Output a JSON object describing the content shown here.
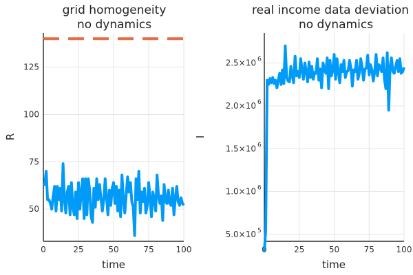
{
  "chart_data": [
    {
      "type": "line",
      "title": [
        "grid homogeneity",
        "no dynamics"
      ],
      "xlabel": "time",
      "ylabel": "R",
      "xlim": [
        0,
        100
      ],
      "ylim": [
        33,
        143
      ],
      "xticks": [
        0,
        25,
        50,
        75,
        100
      ],
      "yticks": [
        50,
        75,
        100,
        125
      ],
      "ytick_labels": [
        "50",
        "75",
        "100",
        "125"
      ],
      "grid": true,
      "legend": "none",
      "series": [
        {
          "color": "#e26f46",
          "style": "dashed",
          "width": 4,
          "x": [
            0,
            100
          ],
          "y": [
            140,
            140
          ]
        },
        {
          "color": "#009af9",
          "style": "solid",
          "width": 4,
          "x": [
            0,
            1,
            2,
            3,
            4,
            5,
            6,
            7,
            8,
            9,
            10,
            11,
            12,
            13,
            14,
            15,
            16,
            17,
            18,
            19,
            20,
            21,
            22,
            23,
            24,
            25,
            26,
            27,
            28,
            29,
            30,
            31,
            32,
            33,
            34,
            35,
            36,
            37,
            38,
            39,
            40,
            41,
            42,
            43,
            44,
            45,
            46,
            47,
            48,
            49,
            50,
            51,
            52,
            53,
            54,
            55,
            56,
            57,
            58,
            59,
            60,
            61,
            62,
            63,
            64,
            65,
            66,
            67,
            68,
            69,
            70,
            71,
            72,
            73,
            74,
            75,
            76,
            77,
            78,
            79,
            80,
            81,
            82,
            83,
            84,
            85,
            86,
            87,
            88,
            89,
            90,
            91,
            92,
            93,
            94,
            95,
            96,
            97,
            98,
            99,
            100
          ],
          "y": [
            64,
            63,
            70,
            55,
            55,
            53,
            50,
            57,
            62,
            49,
            62,
            55,
            61,
            49,
            74,
            55,
            48,
            59,
            62,
            47,
            64,
            51,
            47,
            59,
            45,
            64,
            50,
            59,
            66,
            45,
            66,
            47,
            66,
            60,
            46,
            43,
            61,
            51,
            66,
            55,
            63,
            56,
            49,
            55,
            66,
            56,
            47,
            60,
            52,
            61,
            64,
            53,
            62,
            49,
            60,
            46,
            68,
            55,
            48,
            58,
            67,
            59,
            64,
            54,
            51,
            36,
            66,
            55,
            70,
            48,
            59,
            54,
            61,
            48,
            52,
            64,
            56,
            46,
            59,
            55,
            49,
            68,
            57,
            53,
            57,
            44,
            63,
            54,
            53,
            60,
            53,
            52,
            61,
            47,
            56,
            62,
            54,
            52,
            56,
            53,
            52
          ]
        }
      ]
    },
    {
      "type": "line",
      "title": [
        "real income data deviation",
        "no dynamics"
      ],
      "xlabel": "time",
      "ylabel": "I",
      "xlim": [
        0,
        100
      ],
      "ylim": [
        420000,
        2850000
      ],
      "xticks": [
        0,
        25,
        50,
        75,
        100
      ],
      "yticks": [
        500000,
        1000000,
        1500000,
        2000000,
        2500000
      ],
      "ytick_labels": [
        {
          "mantissa": "5.0×10",
          "exp": "5"
        },
        {
          "mantissa": "1.0×10",
          "exp": "6"
        },
        {
          "mantissa": "1.5×10",
          "exp": "6"
        },
        {
          "mantissa": "2.0×10",
          "exp": "6"
        },
        {
          "mantissa": "2.5×10",
          "exp": "6"
        }
      ],
      "grid": true,
      "legend": "none",
      "series": [
        {
          "color": "#009af9",
          "style": "solid",
          "width": 4,
          "x": [
            0,
            1,
            2,
            3,
            4,
            5,
            6,
            7,
            8,
            9,
            10,
            11,
            12,
            13,
            14,
            15,
            16,
            17,
            18,
            19,
            20,
            21,
            22,
            23,
            24,
            25,
            26,
            27,
            28,
            29,
            30,
            31,
            32,
            33,
            34,
            35,
            36,
            37,
            38,
            39,
            40,
            41,
            42,
            43,
            44,
            45,
            46,
            47,
            48,
            49,
            50,
            51,
            52,
            53,
            54,
            55,
            56,
            57,
            58,
            59,
            60,
            61,
            62,
            63,
            64,
            65,
            66,
            67,
            68,
            69,
            70,
            71,
            72,
            73,
            74,
            75,
            76,
            77,
            78,
            79,
            80,
            81,
            82,
            83,
            84,
            85,
            86,
            87,
            88,
            89,
            90,
            91,
            92,
            93,
            94,
            95,
            96,
            97,
            98,
            99,
            100
          ],
          "y": [
            300000,
            550000,
            2300000,
            2250000,
            2320000,
            2270000,
            2330000,
            2260000,
            2300000,
            2210000,
            2300000,
            2380000,
            2250000,
            2420000,
            2260000,
            2700000,
            2330000,
            2290000,
            2280000,
            2460000,
            2350000,
            2270000,
            2580000,
            2350000,
            2400000,
            2330000,
            2550000,
            2420000,
            2310000,
            2500000,
            2400000,
            2280000,
            2510000,
            2330000,
            2460000,
            2310000,
            2390000,
            2380000,
            2550000,
            2300000,
            2430000,
            2210000,
            2500000,
            2430000,
            2380000,
            2560000,
            2200000,
            2530000,
            2350000,
            2410000,
            2600000,
            2310000,
            2550000,
            2390000,
            2270000,
            2480000,
            2400000,
            2530000,
            2330000,
            2400000,
            2410000,
            2530000,
            2440000,
            2230000,
            2420000,
            2400000,
            2530000,
            2310000,
            2380000,
            2550000,
            2450000,
            2300000,
            2430000,
            2440000,
            2590000,
            2360000,
            2480000,
            2420000,
            2290000,
            2400000,
            2600000,
            2350000,
            2480000,
            2450000,
            2400000,
            2560000,
            2310000,
            2200000,
            2620000,
            1950000,
            2450000,
            2560000,
            2400000,
            2380000,
            2460000,
            2530000,
            2400000,
            2550000,
            2380000,
            2400000,
            2450000
          ]
        }
      ]
    }
  ]
}
